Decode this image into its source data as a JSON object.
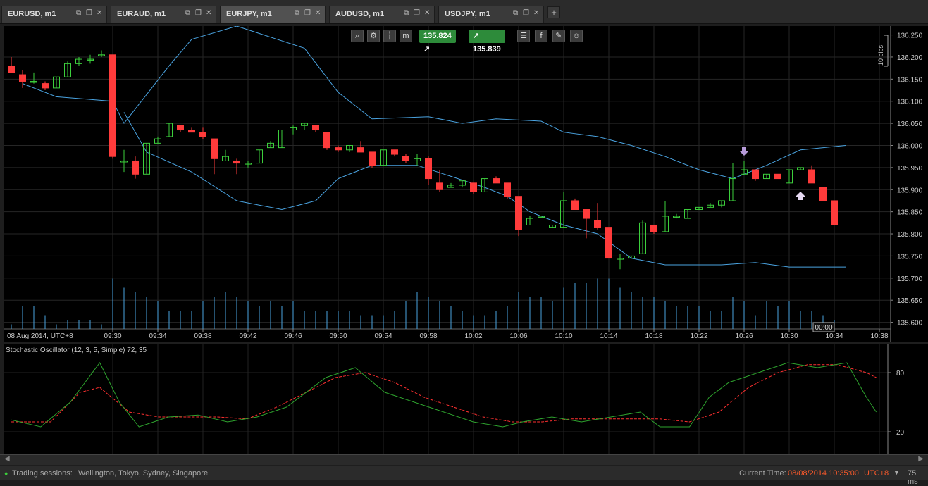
{
  "tabs": [
    {
      "label": "EURUSD, m1",
      "active": false
    },
    {
      "label": "EURAUD, m1",
      "active": false
    },
    {
      "label": "EURJPY, m1",
      "active": true
    },
    {
      "label": "AUDUSD, m1",
      "active": false
    },
    {
      "label": "USDJPY, m1",
      "active": false
    }
  ],
  "tab_add_label": "+",
  "toolbar": {
    "bid": "135.824",
    "ask": "135.839"
  },
  "pips_label": "10 pips",
  "date_label": "08 Aug 2014, UTC+8",
  "countdown": "00:00",
  "indicator_label": "Stochastic Oscillator (12, 3, 5, Simple) 72, 35",
  "colors": {
    "bull": "#3ccf3c",
    "bear": "#ff3b3b",
    "band": "#4aa3e0",
    "volume": "#4aa3e0",
    "k_line": "#2ea32e",
    "d_line": "#ff3030",
    "badge": "#2d8b3a"
  },
  "status": {
    "sessions_label": "Trading sessions:",
    "sessions_value": "Wellington, Tokyo, Sydney, Singapore",
    "time_label": "Current Time:",
    "time_value": "08/08/2014 10:35:00",
    "tz": "UTC+8",
    "latency": "75 ms"
  },
  "chart_data": {
    "type": "candlestick",
    "x_ticks": [
      "09:30",
      "09:34",
      "09:38",
      "09:42",
      "09:46",
      "09:50",
      "09:54",
      "09:58",
      "10:02",
      "10:06",
      "10:10",
      "10:14",
      "10:18",
      "10:22",
      "10:26",
      "10:30",
      "10:34",
      "10:38"
    ],
    "y_ticks": [
      "136.250",
      "136.200",
      "136.150",
      "136.100",
      "136.050",
      "136.000",
      "135.950",
      "135.900",
      "135.850",
      "135.800",
      "135.750",
      "135.700",
      "135.650",
      "135.600"
    ],
    "ylim": [
      135.585,
      136.27
    ],
    "candles": [
      [
        136.18,
        136.2,
        136.165,
        136.165
      ],
      [
        136.16,
        136.17,
        136.13,
        136.145
      ],
      [
        136.145,
        136.165,
        136.14,
        136.145
      ],
      [
        136.14,
        136.145,
        136.125,
        136.13
      ],
      [
        136.13,
        136.155,
        136.13,
        136.155
      ],
      [
        136.155,
        136.19,
        136.155,
        136.185
      ],
      [
        136.185,
        136.2,
        136.18,
        136.195
      ],
      [
        136.195,
        136.205,
        136.185,
        136.195
      ],
      [
        136.205,
        136.215,
        136.2,
        136.205
      ],
      [
        136.205,
        136.205,
        135.97,
        135.975
      ],
      [
        135.965,
        135.99,
        135.94,
        135.965
      ],
      [
        135.965,
        135.975,
        135.925,
        135.935
      ],
      [
        135.935,
        136.005,
        135.935,
        136.005
      ],
      [
        136.005,
        136.02,
        136.005,
        136.015
      ],
      [
        136.02,
        136.05,
        136.02,
        136.05
      ],
      [
        136.045,
        136.045,
        136.03,
        136.035
      ],
      [
        136.035,
        136.04,
        136.03,
        136.03
      ],
      [
        136.03,
        136.04,
        136.015,
        136.02
      ],
      [
        136.015,
        136.015,
        135.935,
        135.97
      ],
      [
        135.965,
        135.99,
        135.965,
        135.975
      ],
      [
        135.965,
        135.97,
        135.935,
        135.96
      ],
      [
        135.96,
        135.965,
        135.95,
        135.96
      ],
      [
        135.96,
        135.99,
        135.96,
        135.99
      ],
      [
        135.995,
        136.01,
        135.995,
        136.005
      ],
      [
        135.995,
        136.035,
        135.995,
        136.035
      ],
      [
        136.035,
        136.045,
        136.025,
        136.04
      ],
      [
        136.045,
        136.05,
        136.035,
        136.05
      ],
      [
        136.045,
        136.045,
        136.03,
        136.035
      ],
      [
        136.03,
        136.03,
        135.99,
        135.995
      ],
      [
        135.995,
        136.0,
        135.985,
        135.99
      ],
      [
        135.99,
        136.0,
        135.985,
        136.0
      ],
      [
        135.995,
        136.01,
        135.985,
        135.985
      ],
      [
        135.985,
        135.985,
        135.95,
        135.955
      ],
      [
        135.955,
        135.99,
        135.955,
        135.99
      ],
      [
        135.99,
        135.99,
        135.975,
        135.98
      ],
      [
        135.975,
        135.98,
        135.96,
        135.965
      ],
      [
        135.965,
        135.98,
        135.955,
        135.97
      ],
      [
        135.97,
        135.975,
        135.91,
        135.925
      ],
      [
        135.915,
        135.945,
        135.895,
        135.9
      ],
      [
        135.905,
        135.915,
        135.905,
        135.91
      ],
      [
        135.91,
        135.92,
        135.905,
        135.92
      ],
      [
        135.915,
        135.915,
        135.89,
        135.895
      ],
      [
        135.895,
        135.925,
        135.895,
        135.925
      ],
      [
        135.925,
        135.93,
        135.915,
        135.915
      ],
      [
        135.915,
        135.915,
        135.88,
        135.885
      ],
      [
        135.885,
        135.885,
        135.795,
        135.81
      ],
      [
        135.82,
        135.84,
        135.82,
        135.835
      ],
      [
        135.84,
        135.84,
        135.84,
        135.84
      ],
      [
        135.815,
        135.82,
        135.815,
        135.82
      ],
      [
        135.815,
        135.895,
        135.815,
        135.875
      ],
      [
        135.875,
        135.88,
        135.855,
        135.855
      ],
      [
        135.855,
        135.855,
        135.79,
        135.835
      ],
      [
        135.83,
        135.87,
        135.81,
        135.815
      ],
      [
        135.815,
        135.815,
        135.745,
        135.745
      ],
      [
        135.745,
        135.755,
        135.72,
        135.745
      ],
      [
        135.745,
        135.75,
        135.745,
        135.75
      ],
      [
        135.755,
        135.83,
        135.755,
        135.825
      ],
      [
        135.82,
        135.82,
        135.8,
        135.805
      ],
      [
        135.805,
        135.875,
        135.805,
        135.84
      ],
      [
        135.84,
        135.845,
        135.835,
        135.84
      ],
      [
        135.835,
        135.855,
        135.835,
        135.855
      ],
      [
        135.855,
        135.86,
        135.855,
        135.86
      ],
      [
        135.86,
        135.87,
        135.86,
        135.865
      ],
      [
        135.865,
        135.875,
        135.86,
        135.875
      ],
      [
        135.875,
        135.96,
        135.875,
        135.925
      ],
      [
        135.935,
        135.965,
        135.935,
        135.945
      ],
      [
        135.945,
        135.945,
        135.92,
        135.925
      ],
      [
        135.925,
        135.935,
        135.925,
        135.935
      ],
      [
        135.935,
        135.935,
        135.925,
        135.925
      ],
      [
        135.915,
        135.945,
        135.915,
        135.945
      ],
      [
        135.945,
        135.95,
        135.945,
        135.95
      ],
      [
        135.945,
        135.955,
        135.915,
        135.915
      ],
      [
        135.905,
        135.905,
        135.875,
        135.875
      ],
      [
        135.875,
        135.875,
        135.82,
        135.82
      ]
    ],
    "upper_band": [
      [
        1,
        136.14
      ],
      [
        4,
        136.11
      ],
      [
        9,
        136.1
      ],
      [
        10,
        136.05
      ],
      [
        14,
        136.18
      ],
      [
        16,
        136.24
      ],
      [
        20,
        136.27
      ],
      [
        26,
        136.22
      ],
      [
        29,
        136.12
      ],
      [
        32,
        136.06
      ],
      [
        37,
        136.065
      ],
      [
        40,
        136.05
      ],
      [
        43,
        136.06
      ],
      [
        47,
        136.055
      ],
      [
        49,
        136.03
      ],
      [
        52,
        136.02
      ],
      [
        55,
        136.0
      ],
      [
        58,
        135.975
      ],
      [
        61,
        135.945
      ],
      [
        64,
        135.925
      ],
      [
        67,
        135.955
      ],
      [
        70,
        135.99
      ],
      [
        74,
        136.0
      ]
    ],
    "lower_band": [
      [
        10,
        136.075
      ],
      [
        12,
        135.985
      ],
      [
        16,
        135.94
      ],
      [
        20,
        135.875
      ],
      [
        24,
        135.855
      ],
      [
        27,
        135.875
      ],
      [
        29,
        135.925
      ],
      [
        32,
        135.955
      ],
      [
        36,
        135.955
      ],
      [
        39,
        135.93
      ],
      [
        42,
        135.905
      ],
      [
        44,
        135.885
      ],
      [
        46,
        135.85
      ],
      [
        49,
        135.82
      ],
      [
        52,
        135.8
      ],
      [
        55,
        135.745
      ],
      [
        58,
        135.73
      ],
      [
        63,
        135.73
      ],
      [
        66,
        135.735
      ],
      [
        69,
        135.725
      ],
      [
        74,
        135.725
      ]
    ],
    "volume": [
      5,
      25,
      25,
      15,
      5,
      10,
      10,
      10,
      5,
      55,
      45,
      40,
      35,
      30,
      20,
      20,
      20,
      30,
      35,
      40,
      35,
      30,
      25,
      30,
      25,
      30,
      20,
      20,
      20,
      20,
      20,
      15,
      15,
      15,
      20,
      30,
      40,
      35,
      30,
      25,
      20,
      15,
      15,
      20,
      25,
      40,
      35,
      35,
      30,
      45,
      50,
      50,
      55,
      55,
      45,
      40,
      35,
      35,
      30,
      25,
      25,
      25,
      20,
      20,
      35,
      30,
      15,
      30,
      25,
      30,
      20,
      20,
      15,
      10
    ],
    "osc_k": [
      [
        0,
        32
      ],
      [
        3,
        25
      ],
      [
        6,
        50
      ],
      [
        9,
        90
      ],
      [
        11,
        50
      ],
      [
        13,
        25
      ],
      [
        16,
        35
      ],
      [
        19,
        37
      ],
      [
        22,
        30
      ],
      [
        25,
        35
      ],
      [
        28,
        45
      ],
      [
        32,
        75
      ],
      [
        35,
        85
      ],
      [
        38,
        60
      ],
      [
        41,
        50
      ],
      [
        44,
        40
      ],
      [
        47,
        30
      ],
      [
        50,
        25
      ],
      [
        52,
        30
      ],
      [
        55,
        35
      ],
      [
        58,
        30
      ],
      [
        61,
        35
      ],
      [
        64,
        40
      ],
      [
        66,
        25
      ],
      [
        69,
        25
      ],
      [
        71,
        55
      ],
      [
        73,
        70
      ],
      [
        76,
        80
      ],
      [
        79,
        90
      ],
      [
        82,
        85
      ],
      [
        85,
        90
      ],
      [
        87,
        55
      ],
      [
        88,
        40
      ]
    ],
    "osc_d": [
      [
        0,
        30
      ],
      [
        4,
        30
      ],
      [
        7,
        60
      ],
      [
        9,
        65
      ],
      [
        12,
        40
      ],
      [
        15,
        35
      ],
      [
        18,
        35
      ],
      [
        21,
        35
      ],
      [
        24,
        33
      ],
      [
        27,
        45
      ],
      [
        30,
        60
      ],
      [
        33,
        75
      ],
      [
        36,
        80
      ],
      [
        39,
        70
      ],
      [
        42,
        55
      ],
      [
        45,
        45
      ],
      [
        48,
        35
      ],
      [
        51,
        30
      ],
      [
        54,
        30
      ],
      [
        57,
        33
      ],
      [
        60,
        33
      ],
      [
        63,
        33
      ],
      [
        66,
        33
      ],
      [
        69,
        30
      ],
      [
        72,
        40
      ],
      [
        75,
        65
      ],
      [
        78,
        80
      ],
      [
        81,
        88
      ],
      [
        84,
        88
      ],
      [
        87,
        80
      ],
      [
        88,
        75
      ]
    ],
    "osc_ticks": [
      "80",
      "20"
    ]
  }
}
